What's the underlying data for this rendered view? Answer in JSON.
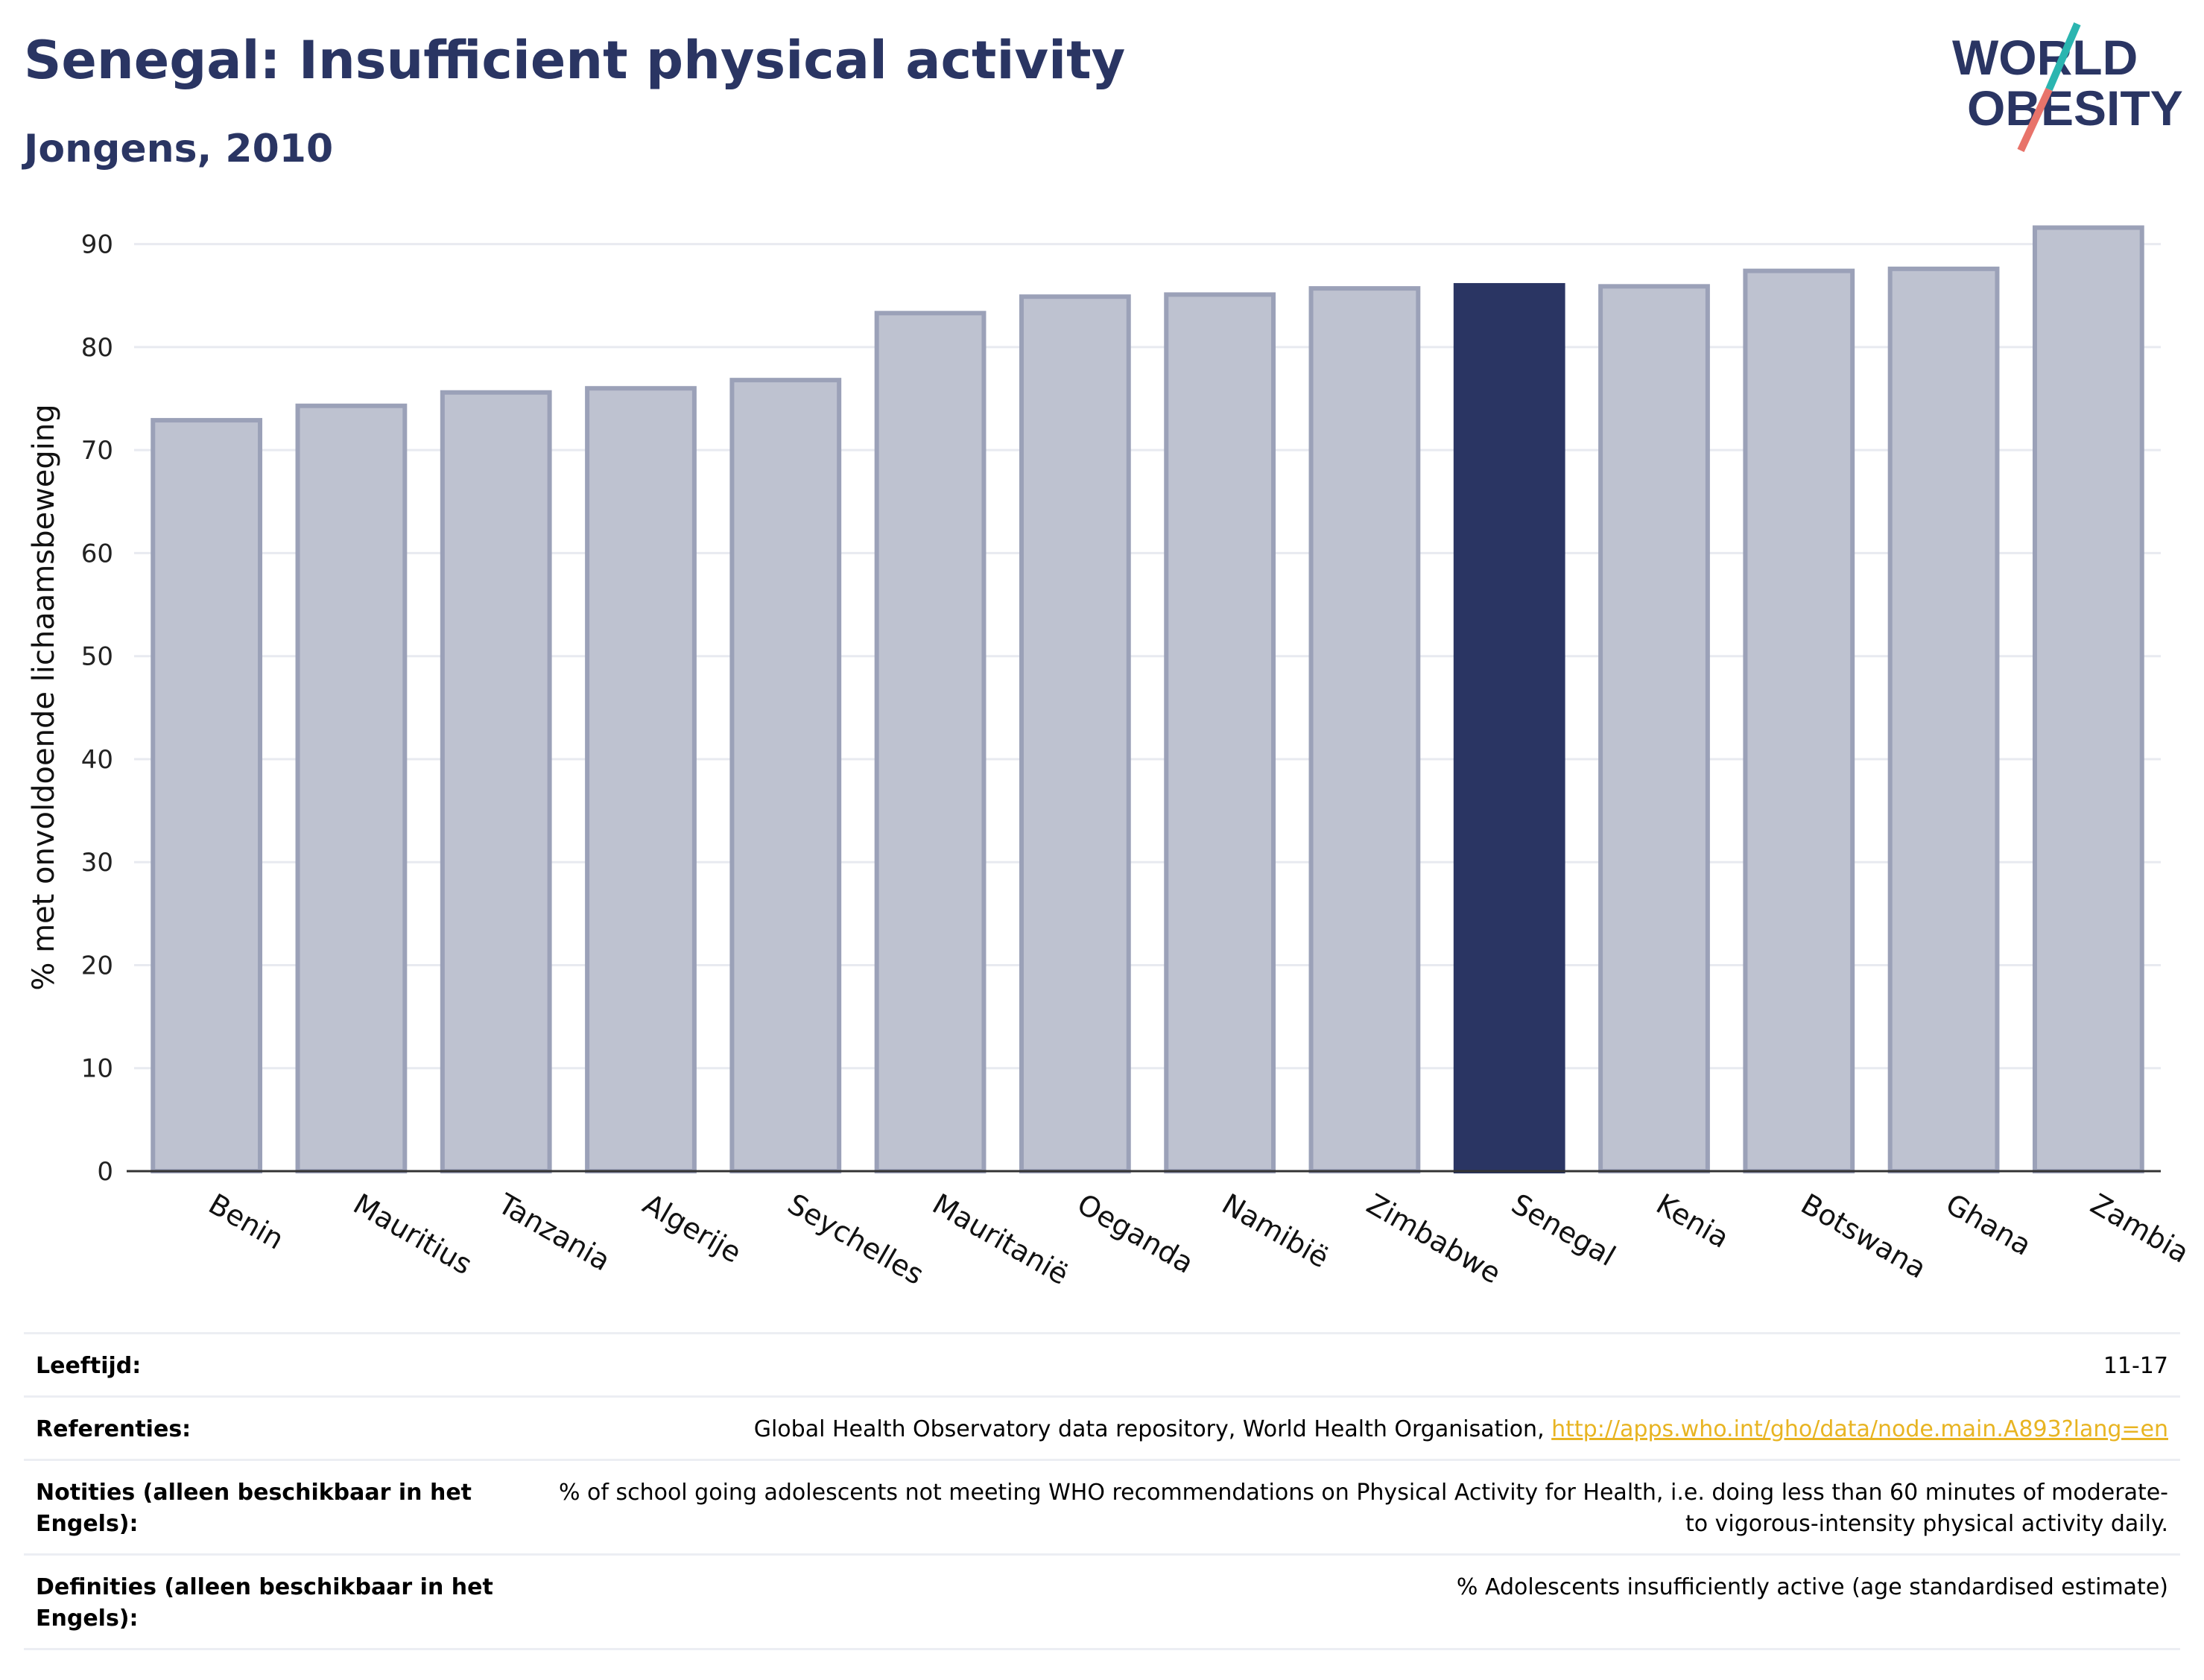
{
  "header": {
    "title": "Senegal: Insufficient physical activity",
    "subtitle": "Jongens, 2010"
  },
  "logo": {
    "line1": "WORLD",
    "line2": "OBESITY",
    "colors": {
      "text": "#2a3563",
      "slash_teal": "#2bb5b0",
      "slash_red": "#e8736a"
    }
  },
  "chart_data": {
    "type": "bar",
    "ylabel": "% met onvoldoende lichaamsbeweging",
    "xlabel": "",
    "ylim": [
      0,
      92
    ],
    "yticks": [
      0,
      10,
      20,
      30,
      40,
      50,
      60,
      70,
      80,
      90
    ],
    "grid": true,
    "categories": [
      "Benin",
      "Mauritius",
      "Tanzania",
      "Algerije",
      "Seychelles",
      "Mauritanië",
      "Oeganda",
      "Namibië",
      "Zimbabwe",
      "Senegal",
      "Kenia",
      "Botswana",
      "Ghana",
      "Zambia"
    ],
    "values": [
      72.9,
      74.3,
      75.6,
      76.0,
      76.8,
      83.3,
      84.9,
      85.1,
      85.7,
      86.0,
      85.9,
      87.4,
      87.6,
      91.6
    ],
    "highlight": "Senegal",
    "colors": {
      "bar": "#bec2d0",
      "bar_border": "#9ba1b8",
      "highlight": "#2a3563",
      "grid": "#e8eaf0",
      "axis": "#333333"
    }
  },
  "info": {
    "rows": [
      {
        "label": "Leeftijd:",
        "value": "11-17"
      },
      {
        "label": "Referenties:",
        "value": "Global Health Observatory data repository, World Health Organisation, ",
        "link": "http://apps.who.int/gho/data/node.main.A893?lang=en"
      },
      {
        "label": "Notities (alleen beschikbaar in het Engels):",
        "value": "% of school going adolescents not meeting WHO recommendations on Physical Activity for Health, i.e. doing less than 60 minutes of moderate- to vigorous-intensity physical activity daily."
      },
      {
        "label": "Definities (alleen beschikbaar in het Engels):",
        "value": "% Adolescents insufficiently active (age standardised estimate)"
      }
    ]
  }
}
